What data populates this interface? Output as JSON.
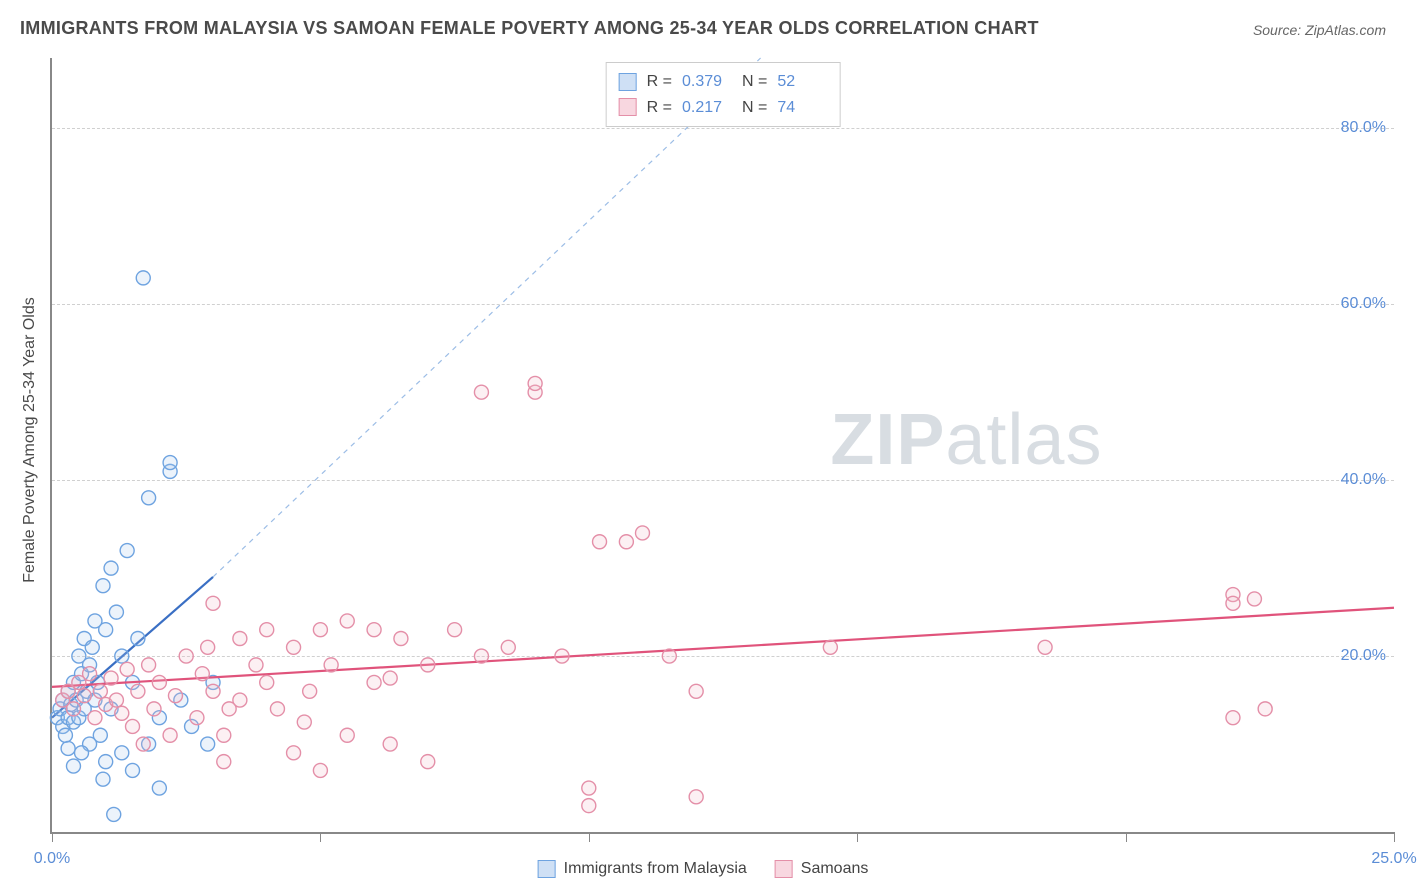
{
  "title": "IMMIGRANTS FROM MALAYSIA VS SAMOAN FEMALE POVERTY AMONG 25-34 YEAR OLDS CORRELATION CHART",
  "source_label": "Source:",
  "source_value": "ZipAtlas.com",
  "watermark_a": "ZIP",
  "watermark_b": "atlas",
  "y_axis_label": "Female Poverty Among 25-34 Year Olds",
  "chart": {
    "type": "scatter",
    "xlim": [
      0,
      25
    ],
    "ylim": [
      0,
      88
    ],
    "x_ticks": [
      0,
      5,
      10,
      15,
      20,
      25
    ],
    "x_tick_labels": [
      "0.0%",
      "",
      "",
      "",
      "",
      "25.0%"
    ],
    "y_ticks": [
      20,
      40,
      60,
      80
    ],
    "y_tick_labels": [
      "20.0%",
      "40.0%",
      "60.0%",
      "80.0%"
    ],
    "background_color": "#ffffff",
    "grid_color": "#d0d0d0",
    "axis_color": "#888888",
    "tick_label_color": "#5b8dd6",
    "marker_radius": 7,
    "marker_stroke_width": 1.4,
    "marker_fill_opacity": 0.22,
    "series": [
      {
        "name": "Immigrants from Malaysia",
        "color_stroke": "#6ea3e0",
        "color_fill": "#a8c8ec",
        "swatch_fill": "#cfe0f5",
        "swatch_border": "#6ea3e0",
        "R": "0.379",
        "N": "52",
        "regression": {
          "x1": 0,
          "y1": 13,
          "x2": 3.0,
          "y2": 29,
          "dash": false,
          "width": 2.2,
          "color": "#3a6fc4"
        },
        "regression_ext": {
          "x1": 3.0,
          "y1": 29,
          "x2": 13.2,
          "y2": 88,
          "dash": true,
          "width": 1.2,
          "color": "#9cbde6"
        },
        "points": [
          [
            0.1,
            13
          ],
          [
            0.15,
            14
          ],
          [
            0.2,
            12
          ],
          [
            0.2,
            15
          ],
          [
            0.25,
            11
          ],
          [
            0.3,
            16
          ],
          [
            0.3,
            13
          ],
          [
            0.35,
            14.5
          ],
          [
            0.4,
            17
          ],
          [
            0.4,
            12.5
          ],
          [
            0.45,
            15
          ],
          [
            0.5,
            20
          ],
          [
            0.5,
            13
          ],
          [
            0.55,
            18
          ],
          [
            0.6,
            22
          ],
          [
            0.6,
            14
          ],
          [
            0.65,
            16
          ],
          [
            0.7,
            10
          ],
          [
            0.7,
            19
          ],
          [
            0.75,
            21
          ],
          [
            0.8,
            15
          ],
          [
            0.8,
            24
          ],
          [
            0.85,
            17
          ],
          [
            0.9,
            11
          ],
          [
            0.95,
            28
          ],
          [
            1.0,
            8
          ],
          [
            1.0,
            23
          ],
          [
            1.1,
            30
          ],
          [
            1.1,
            14
          ],
          [
            1.2,
            25
          ],
          [
            1.3,
            9
          ],
          [
            1.3,
            20
          ],
          [
            1.4,
            32
          ],
          [
            1.5,
            17
          ],
          [
            1.5,
            7
          ],
          [
            1.6,
            22
          ],
          [
            1.8,
            10
          ],
          [
            1.8,
            38
          ],
          [
            2.0,
            13
          ],
          [
            2.0,
            5
          ],
          [
            2.2,
            41
          ],
          [
            2.2,
            42
          ],
          [
            2.4,
            15
          ],
          [
            2.6,
            12
          ],
          [
            3.0,
            17
          ],
          [
            1.7,
            63
          ],
          [
            2.9,
            10
          ],
          [
            0.95,
            6
          ],
          [
            1.15,
            2
          ],
          [
            0.55,
            9
          ],
          [
            0.4,
            7.5
          ],
          [
            0.3,
            9.5
          ]
        ]
      },
      {
        "name": "Samoans",
        "color_stroke": "#e48fa8",
        "color_fill": "#f2bcc9",
        "swatch_fill": "#f8d7e0",
        "swatch_border": "#e48fa8",
        "R": "0.217",
        "N": "74",
        "regression": {
          "x1": 0,
          "y1": 16.5,
          "x2": 25,
          "y2": 25.5,
          "dash": false,
          "width": 2.2,
          "color": "#e0537b"
        },
        "points": [
          [
            0.2,
            15
          ],
          [
            0.3,
            16
          ],
          [
            0.4,
            14
          ],
          [
            0.5,
            17
          ],
          [
            0.6,
            15.5
          ],
          [
            0.7,
            18
          ],
          [
            0.8,
            13
          ],
          [
            0.9,
            16
          ],
          [
            1.0,
            14.5
          ],
          [
            1.1,
            17.5
          ],
          [
            1.2,
            15
          ],
          [
            1.3,
            13.5
          ],
          [
            1.4,
            18.5
          ],
          [
            1.5,
            12
          ],
          [
            1.6,
            16
          ],
          [
            1.8,
            19
          ],
          [
            1.9,
            14
          ],
          [
            2.0,
            17
          ],
          [
            2.2,
            11
          ],
          [
            2.3,
            15.5
          ],
          [
            2.5,
            20
          ],
          [
            2.7,
            13
          ],
          [
            2.8,
            18
          ],
          [
            3.0,
            16
          ],
          [
            3.0,
            26
          ],
          [
            3.2,
            11
          ],
          [
            3.2,
            8
          ],
          [
            3.5,
            22
          ],
          [
            3.5,
            15
          ],
          [
            3.8,
            19
          ],
          [
            4.0,
            23
          ],
          [
            4.0,
            17
          ],
          [
            4.2,
            14
          ],
          [
            4.5,
            9
          ],
          [
            4.5,
            21
          ],
          [
            4.8,
            16
          ],
          [
            5.0,
            23
          ],
          [
            5.0,
            7
          ],
          [
            5.2,
            19
          ],
          [
            5.5,
            24
          ],
          [
            5.5,
            11
          ],
          [
            6.0,
            17
          ],
          [
            6.0,
            23
          ],
          [
            6.3,
            10
          ],
          [
            6.5,
            22
          ],
          [
            7.0,
            19
          ],
          [
            7.0,
            8
          ],
          [
            7.5,
            23
          ],
          [
            8.0,
            20
          ],
          [
            8.0,
            50
          ],
          [
            8.5,
            21
          ],
          [
            9.0,
            50
          ],
          [
            9.0,
            51
          ],
          [
            9.5,
            20
          ],
          [
            10.0,
            5
          ],
          [
            10.0,
            3
          ],
          [
            10.2,
            33
          ],
          [
            10.7,
            33
          ],
          [
            11.0,
            34
          ],
          [
            11.5,
            20
          ],
          [
            12.0,
            16
          ],
          [
            12.0,
            4
          ],
          [
            14.5,
            21
          ],
          [
            18.5,
            21
          ],
          [
            22.0,
            27
          ],
          [
            22.0,
            26
          ],
          [
            22.4,
            26.5
          ],
          [
            22.0,
            13
          ],
          [
            22.6,
            14
          ],
          [
            6.3,
            17.5
          ],
          [
            4.7,
            12.5
          ],
          [
            3.3,
            14
          ],
          [
            2.9,
            21
          ],
          [
            1.7,
            10
          ]
        ]
      }
    ]
  },
  "legend_top": {
    "r_label": "R =",
    "n_label": "N ="
  },
  "legend_bottom": {
    "items": [
      "Immigrants from Malaysia",
      "Samoans"
    ]
  }
}
